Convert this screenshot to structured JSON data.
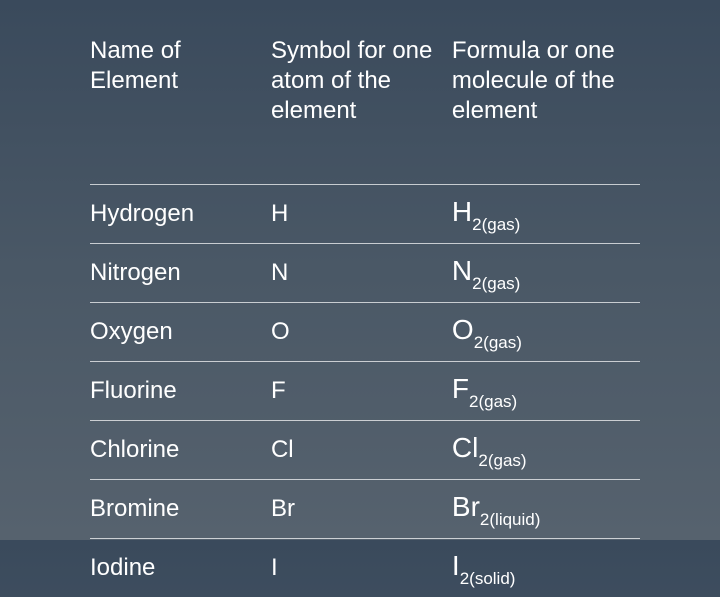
{
  "table": {
    "columns": [
      "Name of Element",
      "Symbol for one atom of the element",
      "Formula or one molecule of the element"
    ],
    "rows": [
      {
        "name": "Hydrogen",
        "symbol": "H",
        "formula_base": "H",
        "formula_sub": "2(gas)"
      },
      {
        "name": "Nitrogen",
        "symbol": "N",
        "formula_base": "N",
        "formula_sub": "2(gas)"
      },
      {
        "name": "Oxygen",
        "symbol": "O",
        "formula_base": "O",
        "formula_sub": "2(gas)"
      },
      {
        "name": "Fluorine",
        "symbol": "F",
        "formula_base": "F",
        "formula_sub": "2(gas)"
      },
      {
        "name": "Chlorine",
        "symbol": "Cl",
        "formula_base": "Cl",
        "formula_sub": "2(gas)"
      },
      {
        "name": "Bromine",
        "symbol": "Br",
        "formula_base": "Br",
        "formula_sub": "2(liquid)"
      },
      {
        "name": "Iodine",
        "symbol": "I",
        "formula_base": "I",
        "formula_sub": "2(solid)"
      }
    ],
    "styling": {
      "background_gradient_from": "#3a4a5c",
      "background_gradient_to": "#56626e",
      "text_color": "#ffffff",
      "divider_color": "rgba(255,255,255,0.7)",
      "header_fontsize": 24,
      "data_fontsize": 24,
      "formula_fontsize": 28,
      "subscript_fontsize": 17,
      "font_family": "Arial"
    }
  }
}
